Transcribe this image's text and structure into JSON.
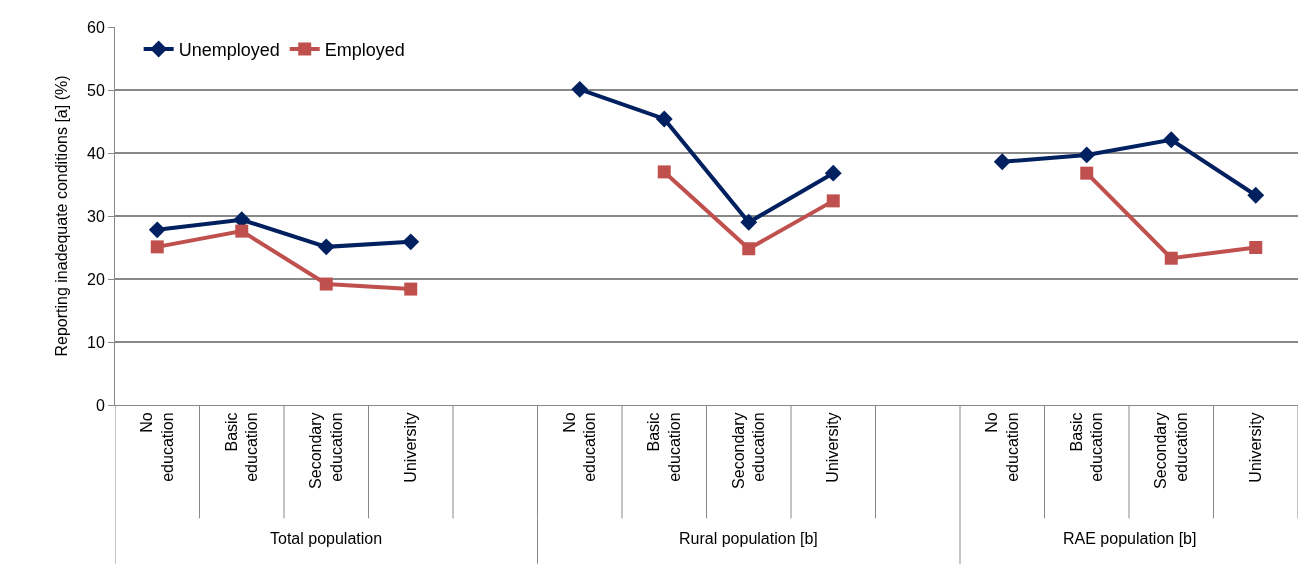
{
  "chart_data": {
    "type": "line",
    "ylabel": "Reporting inadequate conditions [a] (%)",
    "categories": [
      "No education",
      "Basic education",
      "Secondary education",
      "University",
      null,
      "No education",
      "Basic education",
      "Secondary education",
      "University",
      null,
      "No education",
      "Basic education",
      "Secondary education",
      "University"
    ],
    "annotations": [
      "Total population",
      "Rural population [b]",
      "RAE population [b]"
    ],
    "series": [
      {
        "name": "Unemployed",
        "color": "#002060",
        "marker": "diamond",
        "values": [
          27.8,
          29.4,
          25.1,
          25.9,
          null,
          50.1,
          45.4,
          29.0,
          36.8,
          null,
          38.6,
          39.7,
          42.1,
          33.3
        ]
      },
      {
        "name": "Employed",
        "color": "#c0504d",
        "marker": "square",
        "values": [
          25.1,
          27.6,
          19.2,
          18.4,
          null,
          null,
          37.0,
          24.8,
          32.4,
          null,
          null,
          36.8,
          23.3,
          25.0
        ]
      }
    ],
    "ylim": [
      0,
      60
    ],
    "yticks": [
      0,
      10,
      20,
      30,
      40,
      50,
      60
    ],
    "grid": "y",
    "legend": "top left",
    "line_style": "solid"
  }
}
